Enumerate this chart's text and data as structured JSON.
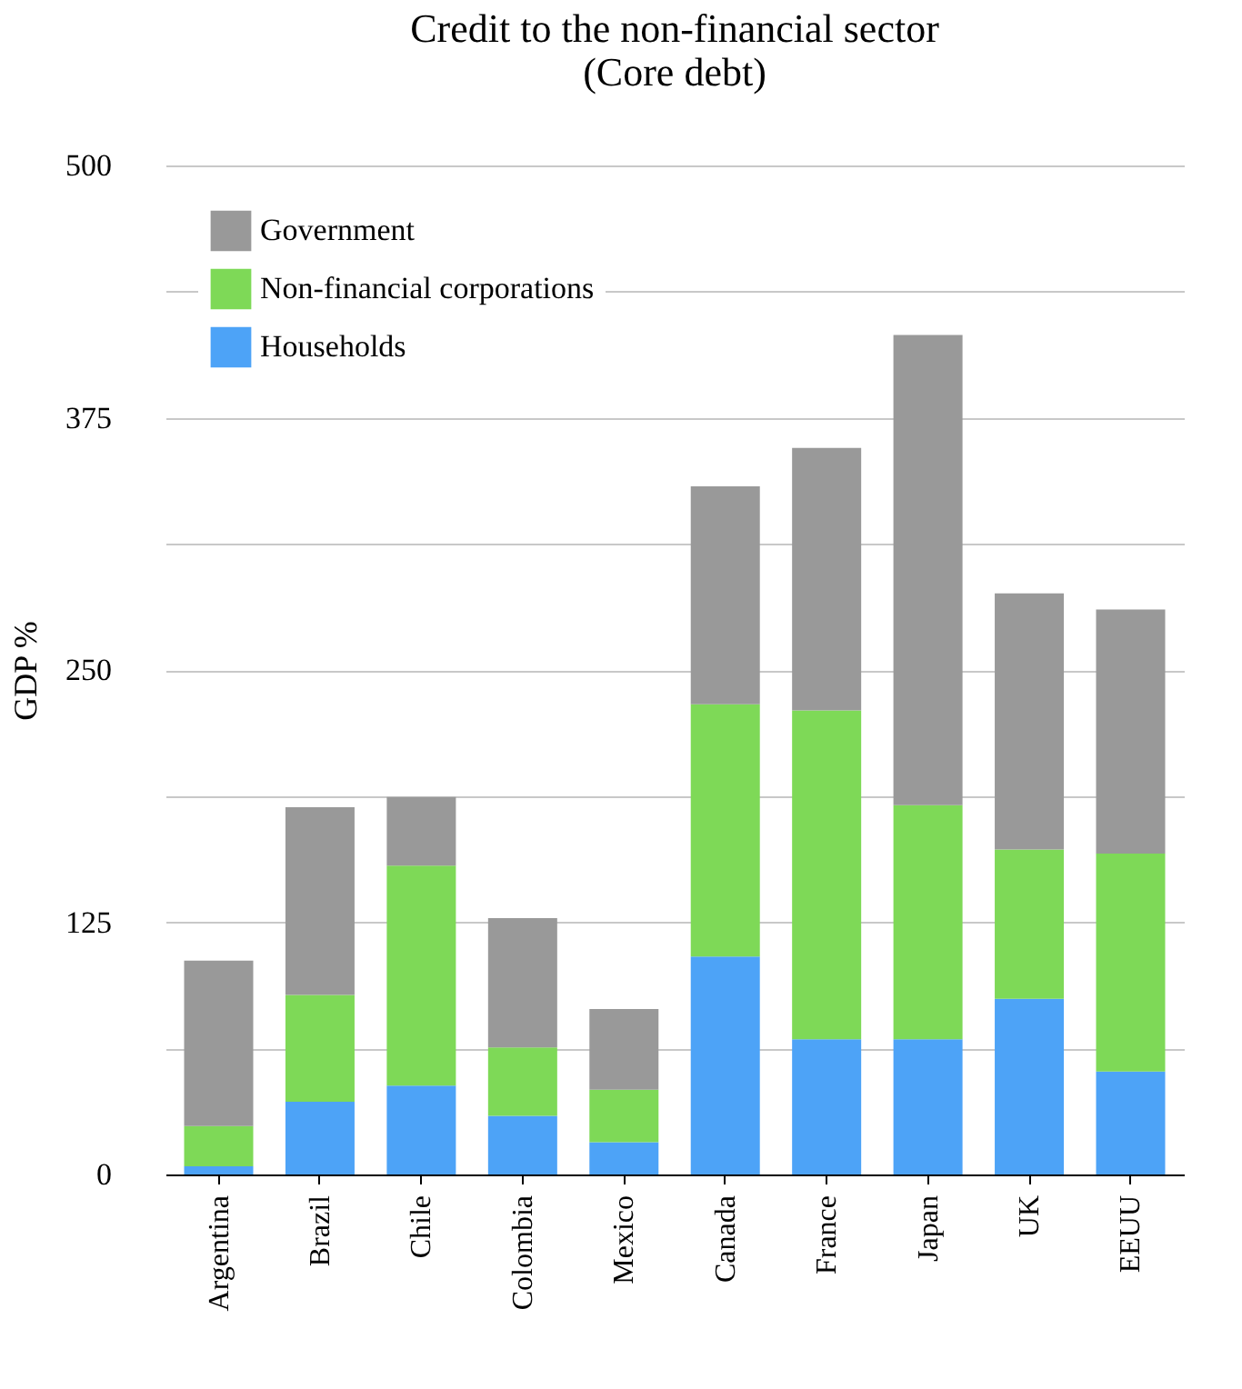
{
  "chart_data": {
    "type": "bar",
    "title": "Credit to the non-financial sector (Core debt)",
    "ylabel": "GDP %",
    "categories": [
      "Argentina",
      "Brazil",
      "Chile",
      "Colombia",
      "Mexico",
      "Canada",
      "France",
      "Japan",
      "UK",
      "EEUU"
    ],
    "stacked": true,
    "series": [
      {
        "name": "Households",
        "color": "#4da3f7",
        "values": [
          4,
          36,
          44,
          29,
          16,
          108,
          67,
          67,
          87,
          51
        ]
      },
      {
        "name": "Non-financial corporations",
        "color": "#7ed957",
        "values": [
          20,
          53,
          109,
          34,
          26,
          125,
          163,
          116,
          74,
          108
        ]
      },
      {
        "name": "Government",
        "color": "#999999",
        "values": [
          82,
          93,
          34,
          64,
          40,
          108,
          130,
          233,
          127,
          121
        ]
      }
    ],
    "ylim": [
      0,
      500
    ],
    "yticks": [
      0,
      {
        "value": 62.5,
        "label": null
      },
      125,
      {
        "value": 187.5,
        "label": null
      },
      250,
      {
        "value": 312.5,
        "label": null
      },
      375,
      {
        "value": 437.5,
        "label": null
      },
      500
    ],
    "grid": "y",
    "legend": "top left"
  }
}
